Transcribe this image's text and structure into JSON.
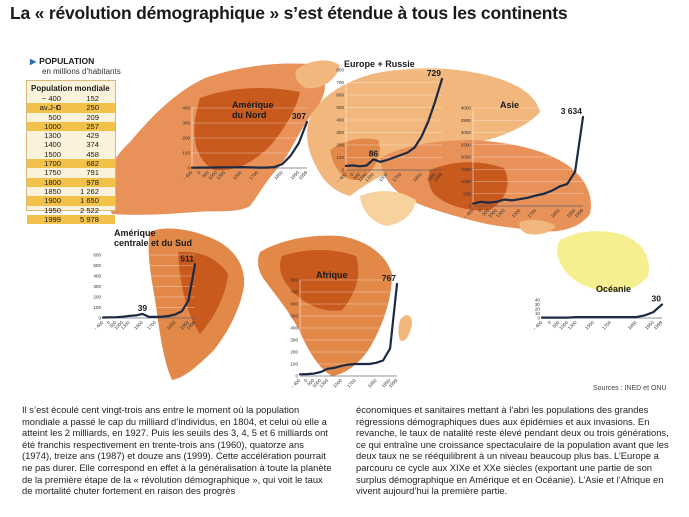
{
  "title": "La « révolution démographique » s’est étendue à tous les continents",
  "legend": {
    "label": "POPULATION",
    "unit": "en millions d’habitants"
  },
  "world_table": {
    "title": "Population mondiale",
    "rows": [
      {
        "year": "− 400  av.J-C",
        "value": "152"
      },
      {
        "year": "0",
        "value": "250"
      },
      {
        "year": "500",
        "value": "209"
      },
      {
        "year": "1000",
        "value": "257"
      },
      {
        "year": "1300",
        "value": "429"
      },
      {
        "year": "1400",
        "value": "374"
      },
      {
        "year": "1500",
        "value": "458"
      },
      {
        "year": "1700",
        "value": "682"
      },
      {
        "year": "1750",
        "value": "791"
      },
      {
        "year": "1800",
        "value": "978"
      },
      {
        "year": "1850",
        "value": "1 262"
      },
      {
        "year": "1900",
        "value": "1 650"
      },
      {
        "year": "1950",
        "value": "2 522"
      },
      {
        "year": "1999",
        "value": "5 978"
      }
    ]
  },
  "chart_data": [
    {
      "type": "area",
      "title": "Amérique du Nord",
      "x": [
        -400,
        0,
        500,
        1000,
        1300,
        1400,
        1500,
        1600,
        1700,
        1750,
        1800,
        1850,
        1900,
        1950,
        1999
      ],
      "y": [
        2,
        3,
        3,
        4,
        5,
        5,
        6,
        4,
        3,
        3,
        6,
        26,
        82,
        166,
        307
      ],
      "labels": {
        "end": "307"
      },
      "ylim": [
        0,
        400
      ],
      "yticks": [
        0,
        100,
        200,
        300,
        400
      ],
      "xticks": [
        "− 400",
        "0",
        "500",
        "1000",
        "1300",
        "1500",
        "1700",
        "1850",
        "1950",
        "1999"
      ]
    },
    {
      "type": "area",
      "title": "Europe + Russie",
      "x": [
        -400,
        0,
        500,
        1000,
        1300,
        1400,
        1500,
        1600,
        1700,
        1750,
        1800,
        1850,
        1900,
        1950,
        1999
      ],
      "y": [
        32,
        37,
        30,
        36,
        86,
        65,
        80,
        100,
        120,
        140,
        180,
        265,
        390,
        547,
        729
      ],
      "labels": {
        "mid": "86",
        "end": "729"
      },
      "ylim": [
        0,
        800
      ],
      "yticks": [
        0,
        100,
        200,
        300,
        400,
        500,
        600,
        700,
        800
      ],
      "xticks": [
        "− 400",
        "0",
        "500",
        "1000",
        "1300",
        "1500",
        "1700",
        "1850",
        "1950",
        "1999"
      ]
    },
    {
      "type": "area",
      "title": "Asie",
      "x": [
        -400,
        0,
        500,
        1000,
        1300,
        1400,
        1500,
        1600,
        1700,
        1750,
        1800,
        1850,
        1900,
        1950,
        1999
      ],
      "y": [
        95,
        170,
        140,
        170,
        260,
        230,
        280,
        340,
        430,
        500,
        620,
        790,
        900,
        1400,
        3634
      ],
      "ylim": [
        0,
        4000
      ],
      "yticks": [
        0,
        500,
        1000,
        1500,
        2000,
        2500,
        3000,
        3500,
        4000
      ],
      "labels": {
        "end": "3 634"
      },
      "xticks": [
        "− 400",
        "0",
        "500",
        "1000",
        "1300",
        "1500",
        "1700",
        "1850",
        "1950",
        "1999"
      ]
    },
    {
      "type": "area",
      "title": "Amérique centrale et du Sud",
      "x": [
        -400,
        0,
        500,
        1000,
        1300,
        1400,
        1500,
        1600,
        1700,
        1750,
        1800,
        1850,
        1900,
        1950,
        1999
      ],
      "y": [
        5,
        7,
        8,
        12,
        20,
        25,
        39,
        10,
        10,
        12,
        19,
        34,
        65,
        165,
        511
      ],
      "ylim": [
        0,
        600
      ],
      "yticks": [
        0,
        100,
        200,
        300,
        400,
        500,
        600
      ],
      "labels": {
        "mid": "39",
        "end": "511"
      },
      "xticks": [
        "− 400",
        "0",
        "500",
        "1000",
        "1300",
        "1500",
        "1700",
        "1850",
        "1950",
        "1999"
      ]
    },
    {
      "type": "area",
      "title": "Afrique",
      "x": [
        -400,
        0,
        500,
        1000,
        1300,
        1400,
        1500,
        1600,
        1700,
        1750,
        1800,
        1850,
        1900,
        1950,
        1999
      ],
      "y": [
        14,
        16,
        20,
        33,
        60,
        68,
        85,
        95,
        100,
        100,
        100,
        110,
        130,
        230,
        767
      ],
      "ylim": [
        0,
        800
      ],
      "yticks": [
        0,
        100,
        200,
        300,
        400,
        500,
        600,
        700,
        800
      ],
      "labels": {
        "end": "767"
      },
      "xticks": [
        "− 400",
        "0",
        "500",
        "1000",
        "1300",
        "1500",
        "1700",
        "1850",
        "1950",
        "1999"
      ]
    },
    {
      "type": "area",
      "title": "Océanie",
      "x": [
        -400,
        0,
        500,
        1000,
        1300,
        1400,
        1500,
        1600,
        1700,
        1750,
        1800,
        1850,
        1900,
        1950,
        1999
      ],
      "y": [
        1,
        1,
        1,
        1,
        2,
        2,
        2,
        2,
        2,
        2,
        2,
        2,
        6,
        13,
        30
      ],
      "ylim": [
        0,
        40
      ],
      "yticks": [
        0,
        10,
        20,
        30,
        40
      ],
      "labels": {
        "end": "30"
      },
      "xticks": [
        "− 400",
        "0",
        "500",
        "1000",
        "1300",
        "1500",
        "1700",
        "1850",
        "1950",
        "1999"
      ]
    }
  ],
  "sources": "Sources : INED et ONU",
  "body": {
    "col1": "Il s’est écoulé cent vingt-trois ans entre le moment où la population mondiale a passé le cap du milliard d’individus, en 1804, et celui où elle a atteint les 2 milliards, en 1927. Puis les seuils des 3, 4, 5 et 6 milliards ont été franchis respectivement en trente-trois ans (1960), quatorze ans (1974), treize ans (1987) et douze ans (1999). Cette accélération pourrait ne pas durer. Elle correspond en effet à la généralisation à toute la planète de la première étape de la « révolution démographique », qui voit le taux de mortalité chuter fortement en raison des progrès",
    "col2": "économiques et sanitaires mettant à l’abri les populations des grandes régressions démographiques dues aux épidémies et aux invasions. En revanche, le taux de natalité reste élevé pendant deux ou trois générations, ce qui entraîne une croissance spectaculaire de la population avant que les deux taux ne se rééquilibrent à un niveau beaucoup plus bas. L’Europe a parcouru ce cycle aux XIXe et XXe siècles (exportant une partie de son surplus démographique en Amérique et en Océanie). L’Asie et l’Afrique en vivent aujourd’hui la première partie."
  },
  "colors": {
    "dark": "#c85a1e",
    "mid": "#e2894a",
    "light": "#f2b77c",
    "pale": "#f7d29e",
    "yellow": "#f6ef8f",
    "curve": "#1c2a44",
    "sea": "#ffffff"
  }
}
